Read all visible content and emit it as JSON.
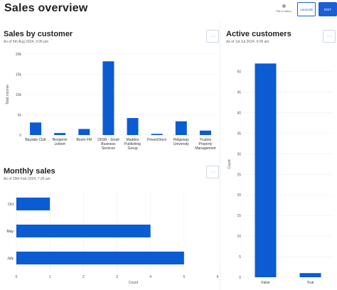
{
  "header": {
    "title": "Sales overview",
    "pin_label": "Pin to menu",
    "button_outline_label": "ooooo28",
    "button_solid_label": "EDIT"
  },
  "panels": {
    "sales_by_customer": {
      "title": "Sales by customer",
      "subtitle": "As of 5th Aug 2024, 3:06 pm",
      "menu_glyph": "···"
    },
    "monthly_sales": {
      "title": "Monthly sales",
      "subtitle": "As of 29th Feb 2024, 7:26 am",
      "menu_glyph": "···"
    },
    "active_customers": {
      "title": "Active customers",
      "subtitle": "As of 1st Jul 2024, 9:06 am",
      "menu_glyph": "···"
    }
  },
  "colors": {
    "bar": "#0b5bd3",
    "accent": "#1a5fd6"
  },
  "chart_data": [
    {
      "type": "bar",
      "title": "Sales by customer",
      "ylabel": "Total income",
      "xlabel": "",
      "ylim": [
        0,
        20000
      ],
      "yticks": [
        0,
        5000,
        10000,
        15000,
        20000
      ],
      "ytick_labels": [
        "0",
        "5k",
        "10k",
        "15k",
        "20k"
      ],
      "categories": [
        [
          "Bayside Club"
        ],
        [
          "Benjamin",
          "Liebert"
        ],
        [
          "Boom FM"
        ],
        [
          "DIISR - Small",
          "Business",
          "Services"
        ],
        [
          "Maddox",
          "Publishing",
          "Group"
        ],
        [
          "PowerDirect"
        ],
        [
          "Ridgeway",
          "University"
        ],
        [
          "Truxton",
          "Property",
          "Management"
        ]
      ],
      "values": [
        3100,
        500,
        1500,
        18200,
        4200,
        300,
        3400,
        1100
      ]
    },
    {
      "type": "bar",
      "orientation": "horizontal",
      "title": "Monthly sales",
      "xlabel": "Count",
      "ylabel": "",
      "xlim": [
        0,
        6
      ],
      "xticks": [
        0,
        1,
        2,
        3,
        4,
        5,
        6
      ],
      "categories": [
        "Oct",
        "May",
        "July"
      ],
      "values": [
        1,
        4,
        5
      ]
    },
    {
      "type": "bar",
      "title": "Active customers",
      "ylabel": "Count",
      "xlabel": "",
      "ylim": [
        0,
        55
      ],
      "yticks": [
        0,
        5,
        10,
        15,
        20,
        25,
        30,
        35,
        40,
        45,
        50
      ],
      "categories": [
        "False",
        "True"
      ],
      "values": [
        52,
        1
      ]
    }
  ]
}
